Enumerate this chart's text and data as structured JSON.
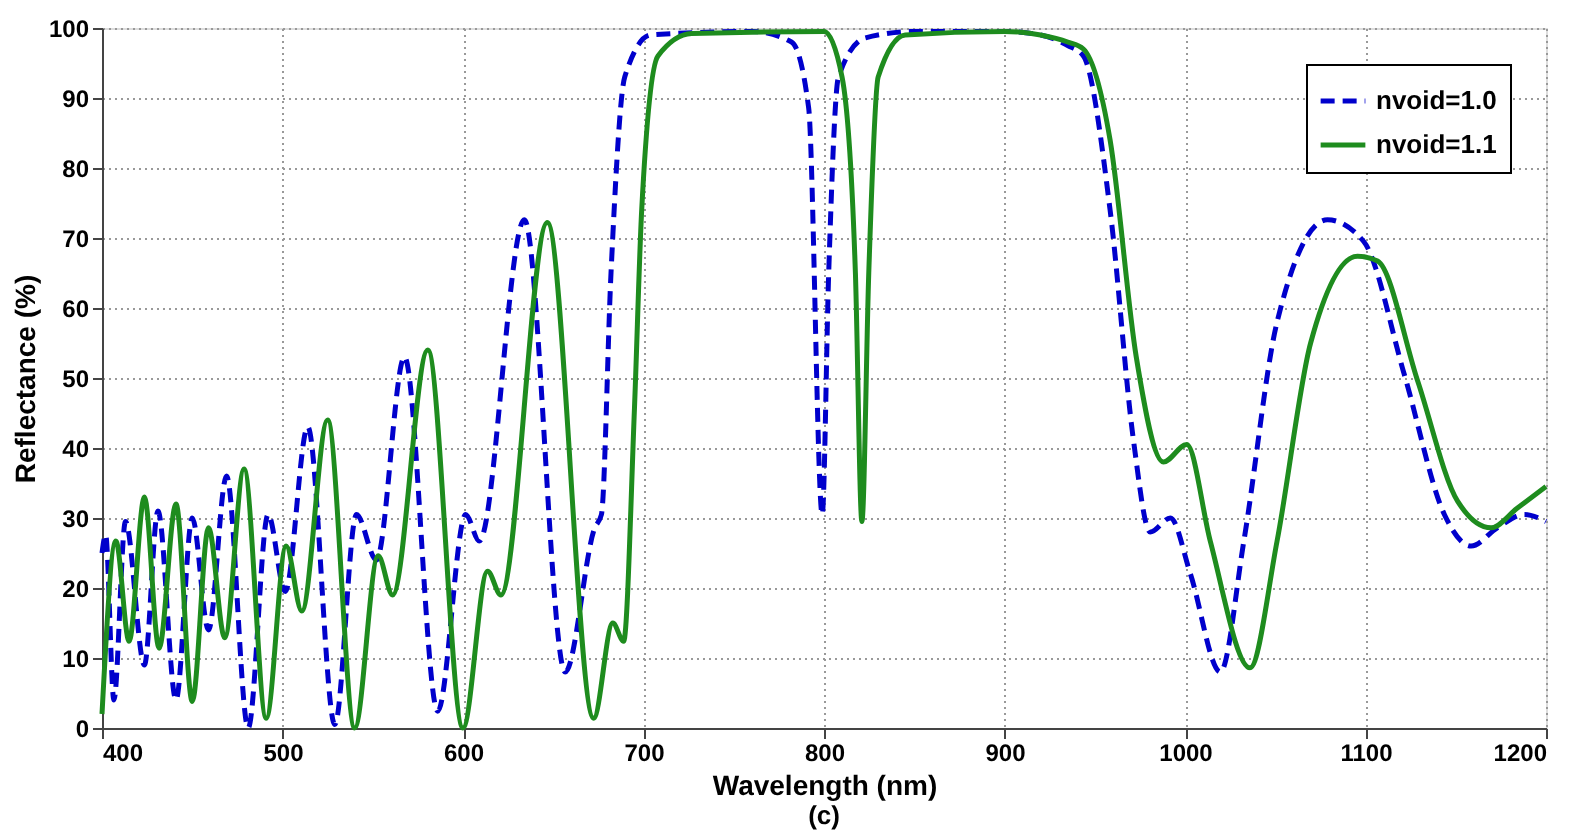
{
  "chart_data": {
    "type": "line",
    "xlabel": "Wavelength (nm)",
    "ylabel": "Reflectance (%)",
    "xlim": [
      400,
      1200
    ],
    "xticks": [
      400,
      500,
      600,
      700,
      800,
      900,
      1000,
      1100,
      1200
    ],
    "ylim": [
      0,
      100
    ],
    "yticks": [
      0,
      10,
      20,
      30,
      40,
      50,
      60,
      70,
      80,
      90,
      100
    ],
    "grid": true,
    "legend": "top right",
    "annotations": [
      "(c)"
    ],
    "series": [
      {
        "name": "nvoid=1.0",
        "color": "#0000cc",
        "line_style": "dashed",
        "x": [
          400,
          402,
          406.6,
          413,
          423.5,
          431,
          441,
          450,
          459,
          469,
          481,
          492,
          501.5,
          514,
          529,
          541,
          552,
          567.6,
          586,
          601.5,
          609,
          634,
          656.6,
          673,
          676.7,
          682,
          689.6,
          704,
          760,
          782,
          791.5,
          799,
          802.6,
          808,
          823,
          850,
          900,
          920,
          935,
          943.7,
          958.5,
          971.5,
          980.7,
          991.9,
          1003,
          1019.6,
          1032.6,
          1051,
          1078.9,
          1099,
          1121.5,
          1143.7,
          1158.5,
          1173,
          1188,
          1200
        ],
        "values": [
          25,
          27.6,
          4,
          29.5,
          9,
          31,
          4,
          30,
          14,
          36,
          0,
          30.5,
          19.5,
          43,
          0.5,
          30.5,
          24,
          53,
          2.4,
          30.5,
          26.7,
          72.6,
          8,
          28.6,
          30.5,
          65,
          93,
          99,
          99.5,
          98,
          88.6,
          30.5,
          65,
          93,
          98.6,
          99.5,
          99.5,
          99,
          97.5,
          96,
          74,
          41,
          28,
          30,
          22,
          8,
          26.7,
          58,
          72.6,
          69.5,
          50.5,
          30.5,
          26,
          28.6,
          30.5,
          29.5
        ]
      },
      {
        "name": "nvoid=1.1",
        "color": "#1e8c1e",
        "line_style": "solid",
        "x": [
          400,
          407.7,
          415,
          423.5,
          431.6,
          441,
          450,
          459,
          468,
          478.7,
          491,
          502,
          510.7,
          525,
          540,
          553,
          561,
          580.5,
          600,
          613.6,
          621,
          646.7,
          672.4,
          683,
          689,
          695,
          699,
          708,
          726.7,
          800,
          810,
          817.4,
          821,
          824.8,
          830,
          845,
          900,
          920,
          935,
          943.7,
          958.5,
          973,
          988,
          1001,
          1014,
          1036,
          1051,
          1069.6,
          1095.6,
          1106.7,
          1129,
          1151,
          1169.6,
          1184,
          1200
        ],
        "values": [
          2,
          26.7,
          12.4,
          33,
          11.4,
          32,
          3.8,
          28.6,
          12.9,
          37,
          1.4,
          26,
          16.7,
          44,
          0,
          24.6,
          19,
          54,
          0,
          22.4,
          19,
          72.2,
          1.4,
          15,
          12.4,
          45.7,
          74,
          96,
          99.2,
          99.5,
          93,
          65,
          29.5,
          65,
          93,
          99,
          99.5,
          99,
          98,
          97,
          84,
          53,
          38,
          40.5,
          26.7,
          8.6,
          26.7,
          55,
          67.4,
          66.7,
          49.5,
          32.4,
          28.6,
          31.4,
          34.5
        ]
      }
    ]
  }
}
